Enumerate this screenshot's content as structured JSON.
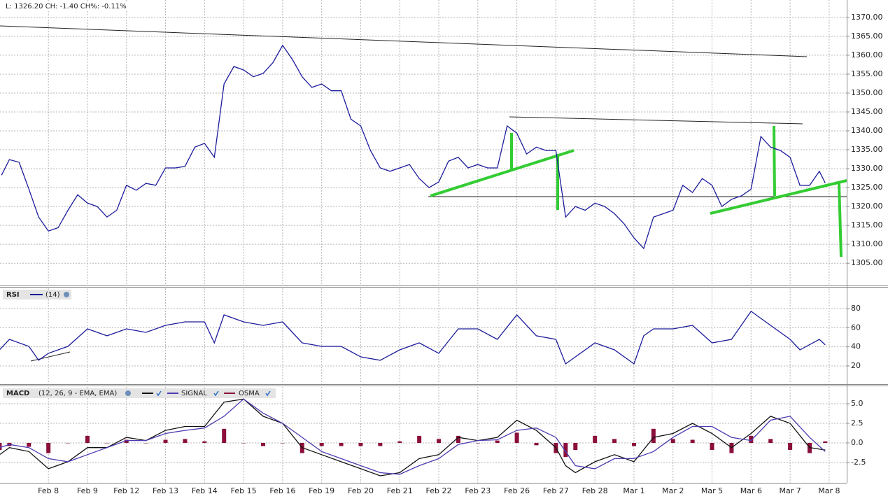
{
  "chart_data": [
    {
      "type": "line",
      "title": "L: 1326.20 CH: -1.40 CH%: -0.11%",
      "grid": true,
      "xlim": [
        -1.24,
        20.45
      ],
      "xticks": [
        {
          "value": 0,
          "label": "Feb 8"
        },
        {
          "value": 1,
          "label": "Feb 9"
        },
        {
          "value": 2,
          "label": "Feb 12"
        },
        {
          "value": 3,
          "label": "Feb 13"
        },
        {
          "value": 4,
          "label": "Feb 14"
        },
        {
          "value": 5,
          "label": "Feb 15"
        },
        {
          "value": 6,
          "label": "Feb 16"
        },
        {
          "value": 7,
          "label": "Feb 19"
        },
        {
          "value": 8,
          "label": "Feb 20"
        },
        {
          "value": 9,
          "label": "Feb 21"
        },
        {
          "value": 10,
          "label": "Feb 22"
        },
        {
          "value": 11,
          "label": "Feb 23"
        },
        {
          "value": 12,
          "label": "Feb 26"
        },
        {
          "value": 13,
          "label": "Feb 27"
        },
        {
          "value": 14,
          "label": "Feb 28"
        },
        {
          "value": 15,
          "label": "Mar 1"
        },
        {
          "value": 16,
          "label": "Mar 2"
        },
        {
          "value": 17,
          "label": "Mar 5"
        },
        {
          "value": 18,
          "label": "Mar 6"
        },
        {
          "value": 19,
          "label": "Mar 7"
        },
        {
          "value": 20,
          "label": "Mar 8"
        }
      ],
      "ylim": [
        1299.3,
        1374.6
      ],
      "yticks": [
        {
          "value": 1305,
          "label": "1305.00"
        },
        {
          "value": 1310,
          "label": "1310.00"
        },
        {
          "value": 1315,
          "label": "1315.00"
        },
        {
          "value": 1320,
          "label": "1320.00"
        },
        {
          "value": 1325,
          "label": "1325.00"
        },
        {
          "value": 1330,
          "label": "1330.00"
        },
        {
          "value": 1335,
          "label": "1335.00"
        },
        {
          "value": 1340,
          "label": "1340.00"
        },
        {
          "value": 1345,
          "label": "1345.00"
        },
        {
          "value": 1350,
          "label": "1350.00"
        },
        {
          "value": 1355,
          "label": "1355.00"
        },
        {
          "value": 1360,
          "label": "1360.00"
        },
        {
          "value": 1365,
          "label": "1365.00"
        },
        {
          "value": 1370,
          "label": "1370.00"
        }
      ],
      "x": [
        -1.2,
        -1,
        -0.75,
        -0.5,
        -0.25,
        0,
        0.25,
        0.5,
        0.75,
        1,
        1.25,
        1.5,
        1.75,
        2,
        2.25,
        2.5,
        2.75,
        3,
        3.25,
        3.5,
        3.75,
        4,
        4.25,
        4.5,
        4.75,
        5,
        5.25,
        5.5,
        5.75,
        6,
        6.25,
        6.5,
        6.75,
        7,
        7.25,
        7.5,
        7.75,
        8,
        8.25,
        8.5,
        8.75,
        9,
        9.25,
        9.5,
        9.75,
        10,
        10.25,
        10.5,
        10.75,
        11,
        11.25,
        11.5,
        11.75,
        12,
        12.25,
        12.5,
        12.75,
        13,
        13.25,
        13.5,
        13.75,
        14,
        14.25,
        14.5,
        14.75,
        15,
        15.25,
        15.5,
        15.75,
        16,
        16.25,
        16.5,
        16.75,
        17,
        17.25,
        17.5,
        17.75,
        18,
        18.25,
        18.5,
        18.75,
        19,
        19.25,
        19.5,
        19.75,
        19.9
      ],
      "series": [
        {
          "color": "#1c1c9c",
          "values": [
            1328.3,
            1332.4,
            1331.7,
            1324.6,
            1317.2,
            1313.5,
            1314.4,
            1319,
            1323.1,
            1320.9,
            1320,
            1317.2,
            1319,
            1325.6,
            1324.3,
            1326.1,
            1325.6,
            1330.2,
            1330.2,
            1330.6,
            1335.7,
            1336.7,
            1333,
            1352.4,
            1357,
            1356.1,
            1354.3,
            1355.2,
            1358,
            1362.6,
            1358.9,
            1354.3,
            1351.5,
            1352.4,
            1350.6,
            1350.6,
            1343.1,
            1341.3,
            1334.8,
            1330.2,
            1329.3,
            1330.2,
            1331.1,
            1327.4,
            1325,
            1326.5,
            1332,
            1333,
            1330.2,
            1331.1,
            1330.2,
            1330.2,
            1341.3,
            1339.4,
            1333.9,
            1335.7,
            1334.8,
            1334.8,
            1317.2,
            1320,
            1319,
            1320.9,
            1320,
            1318.1,
            1315.4,
            1311.7,
            1308.9,
            1317.2,
            1318.1,
            1319,
            1325.6,
            1323.7,
            1327.4,
            1325.6,
            1320,
            1321.9,
            1322.8,
            1324.6,
            1338.5,
            1335.7,
            1334.8,
            1333,
            1325.6,
            1325.6,
            1329.3,
            1326.2
          ]
        }
      ]
    },
    {
      "type": "line",
      "title": "RSI",
      "grid": true,
      "ylim": [
        1.7,
        101.2
      ],
      "yticks": [
        20,
        40,
        60,
        80
      ],
      "x": [
        -1.25,
        -1,
        -0.5,
        -0.25,
        0,
        0.5,
        1,
        1.5,
        2,
        2.5,
        3,
        3.5,
        4,
        4.25,
        4.5,
        5,
        5.5,
        6,
        6.5,
        7,
        7.5,
        8,
        8.5,
        9,
        9.5,
        10,
        10.5,
        11,
        11.5,
        12,
        12.5,
        13,
        13.25,
        13.5,
        14,
        14.5,
        15,
        15.25,
        15.5,
        16,
        16.5,
        17,
        17.5,
        18,
        18.5,
        19,
        19.25,
        19.75,
        19.9
      ],
      "series": [
        {
          "name": "(14)",
          "color": "#1c1c9c",
          "values": [
            36.8,
            47.8,
            40.5,
            25.9,
            33.2,
            40.5,
            58.8,
            51.5,
            58.8,
            55.1,
            62.4,
            66.1,
            66.1,
            44.1,
            73.4,
            66.1,
            62.4,
            66.1,
            44.1,
            40.5,
            40.5,
            29.5,
            25.9,
            36.8,
            44.1,
            33.2,
            58.8,
            58.8,
            47.8,
            73.4,
            51.5,
            47.8,
            22.2,
            29.5,
            44.1,
            36.8,
            22.2,
            51.5,
            58.8,
            58.8,
            62.4,
            44.1,
            47.8,
            77.1,
            62.4,
            47.8,
            36.8,
            47.8,
            42.0
          ]
        }
      ]
    },
    {
      "type": "line",
      "title": "MACD",
      "subtitle": "(12, 26, 9 - EMA, EMA)",
      "grid": true,
      "ylim": [
        -5.09,
        7.14
      ],
      "yticks": [
        {
          "value": -2.5,
          "label": "-2.5"
        },
        {
          "value": 0,
          "label": "0.0"
        },
        {
          "value": 2.5,
          "label": "2.5"
        },
        {
          "value": 5,
          "label": "5.0"
        }
      ],
      "x": [
        -1.25,
        -1,
        -0.5,
        0,
        0.5,
        1,
        1.5,
        2,
        2.5,
        3,
        3.5,
        4,
        4.5,
        5,
        5.5,
        6,
        6.5,
        7,
        7.5,
        8,
        8.5,
        9,
        9.5,
        10,
        10.5,
        11,
        11.5,
        12,
        12.5,
        13,
        13.25,
        13.5,
        14,
        14.5,
        15,
        15.5,
        16,
        16.5,
        17,
        17.5,
        18,
        18.5,
        19,
        19.5,
        19.9
      ],
      "series": [
        {
          "color": "#111111",
          "values": [
            -1.5,
            -0.6,
            -1.1,
            -3.3,
            -2.4,
            -0.6,
            -0.6,
            0.7,
            0.3,
            1.6,
            2.1,
            2.1,
            5.2,
            5.6,
            3.4,
            2.5,
            -0.6,
            -1.5,
            -2.4,
            -3.3,
            -4.2,
            -3.8,
            -2.0,
            -1.5,
            0.7,
            0.3,
            0.7,
            2.9,
            1.6,
            -0.6,
            -2.9,
            -3.8,
            -2.4,
            -1.5,
            -2.4,
            0.7,
            1.2,
            2.5,
            1.2,
            -0.6,
            1.2,
            3.4,
            2.5,
            -0.6,
            -0.9
          ]
        },
        {
          "name": "SIGNAL",
          "color": "#4b3bb0",
          "values": [
            -0.6,
            -0.2,
            -0.6,
            -2.0,
            -2.4,
            -1.5,
            -0.6,
            0.3,
            0.3,
            1.2,
            1.6,
            1.9,
            3.4,
            5.6,
            3.8,
            2.5,
            0.7,
            -1.1,
            -2.0,
            -2.9,
            -3.8,
            -4.0,
            -2.9,
            -2.0,
            -0.2,
            0.3,
            0.4,
            1.6,
            1.9,
            0.7,
            -1.1,
            -2.9,
            -3.3,
            -2.0,
            -2.0,
            -1.1,
            0.7,
            2.1,
            2.1,
            0.7,
            0.3,
            2.9,
            3.4,
            0.7,
            -1.1
          ]
        },
        {
          "name": "OSMA",
          "type": "bar",
          "color": "#8b0f3c",
          "values": [
            -0.9,
            -0.4,
            -0.5,
            -1.3,
            0,
            0.9,
            0,
            0.4,
            0,
            0.4,
            0.5,
            0.2,
            1.8,
            0,
            -0.4,
            0,
            -1.3,
            -0.4,
            -0.4,
            -0.4,
            -0.4,
            0.2,
            0.9,
            0.5,
            0.9,
            0,
            0.3,
            1.3,
            -0.3,
            -1.3,
            -1.8,
            -0.9,
            0.9,
            0.5,
            -0.4,
            1.8,
            0.5,
            0.4,
            -0.9,
            -1.3,
            0.9,
            0.5,
            -0.9,
            -1.3,
            0.2
          ]
        }
      ]
    }
  ]
}
